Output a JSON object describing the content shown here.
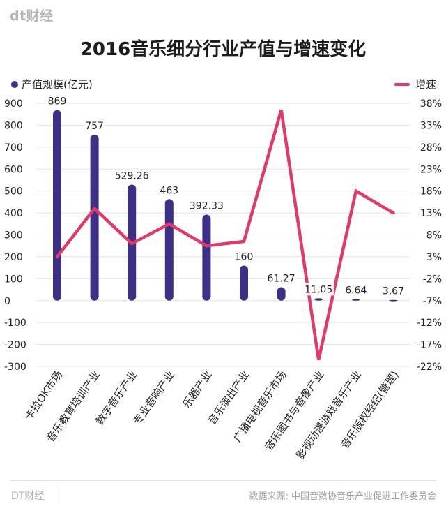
{
  "header": {
    "logo_text": "dt财经",
    "title": "2016音乐细分行业产值与增速变化"
  },
  "legend": {
    "left_label": "产值规模(亿元)",
    "right_label": "增速"
  },
  "colors": {
    "bar": "#3e2f86",
    "line": "#e0396a",
    "grid": "#e3e3e3"
  },
  "chart_data": {
    "type": "bar",
    "title": "2016音乐细分行业产值与增速变化",
    "categories": [
      "卡拉OK市场",
      "音乐教育培训产业",
      "数字音乐产业",
      "专业音响产业",
      "乐器产业",
      "音乐演出产业",
      "广播电视音乐市场",
      "音乐图书与音像产业",
      "影视动漫游戏音乐产业",
      "音乐版权经纪(管理)"
    ],
    "series": [
      {
        "name": "产值规模(亿元)",
        "type": "bar",
        "axis": "left",
        "values": [
          869,
          757,
          529.26,
          463,
          392.33,
          160,
          61.27,
          11.05,
          6.64,
          3.67
        ],
        "labels": [
          "869",
          "757",
          "529.26",
          "463",
          "392.33",
          "160",
          "61.27",
          "11.05",
          "6.64",
          "3.67"
        ]
      },
      {
        "name": "增速",
        "type": "line",
        "axis": "right",
        "values": [
          3.0,
          14.0,
          6.0,
          10.5,
          5.5,
          6.5,
          36.5,
          -20.5,
          18.0,
          13.0
        ]
      }
    ],
    "y_left": {
      "ylim": [
        -300,
        900
      ],
      "ticks": [
        900,
        800,
        700,
        600,
        500,
        400,
        300,
        200,
        100,
        0,
        -100,
        -200,
        -300
      ],
      "tick_labels": [
        "900",
        "800",
        "700",
        "600",
        "500",
        "400",
        "300",
        "200",
        "100",
        "0",
        "-100",
        "-200",
        "-300"
      ]
    },
    "y_right": {
      "ylim": [
        -22,
        38
      ],
      "ticks": [
        38,
        33,
        28,
        23,
        18,
        13,
        8,
        3,
        -2,
        -7,
        -12,
        -17,
        -22
      ],
      "tick_labels": [
        "38%",
        "33%",
        "28%",
        "23%",
        "18%",
        "13%",
        "8%",
        "3%",
        "-2%",
        "-7%",
        "-12%",
        "-17%",
        "-22%"
      ]
    },
    "grid": true,
    "legend_placement": "top"
  },
  "footer": {
    "brand": "DT财经",
    "source": "数据来源: 中国音数协音乐产业促进工作委员会"
  }
}
